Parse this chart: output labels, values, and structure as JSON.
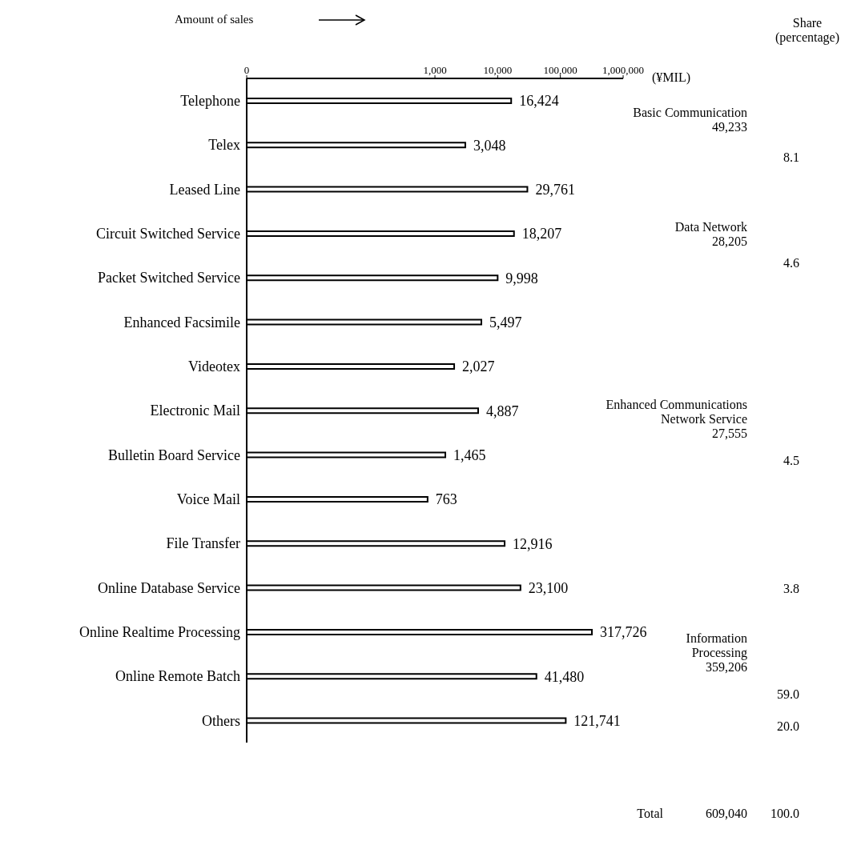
{
  "chart_data": {
    "type": "bar",
    "orientation": "horizontal",
    "log": "x",
    "xlabel": "Amount of sales",
    "categories": [
      "Telephone",
      "Telex",
      "Leased Line",
      "Circuit Switched Service",
      "Packet Switched Service",
      "Enhanced Facsimile",
      "Videotex",
      "Electronic Mail",
      "Bulletin Board Service",
      "Voice Mail",
      "File Transfer",
      "Online Database Service",
      "Online Realtime Processing",
      "Online Remote Batch",
      "Others"
    ],
    "values": [
      16424,
      3048,
      29761,
      18207,
      9998,
      5497,
      2027,
      4887,
      1465,
      763,
      12916,
      23100,
      317726,
      41480,
      121741
    ],
    "color": "#ffffff",
    "value_labels": [
      "16,424",
      "3,048",
      "29,761",
      "18,207",
      "9,998",
      "5,497",
      "2,027",
      "4,887",
      "1,465",
      "763",
      "12,916",
      "23,100",
      "317,726",
      "41,480",
      "121,741"
    ],
    "xlim": [
      0,
      1000000
    ],
    "xticks": [
      0,
      {
        "value": 1000,
        "label": "1,000"
      },
      {
        "value": 10000,
        "label": "10,000"
      },
      {
        "value": 100000,
        "label": "100,000"
      },
      {
        "value": 1000000,
        "label": "1,000,000"
      }
    ],
    "annotations": [
      "(¥MIL)",
      "Share\n(percentage)",
      "Basic Communication\n49,233",
      "8.1",
      "Data Network\n28,205",
      "4.6",
      "Enhanced Communications\nNetwork Service\n27,555",
      "4.5",
      "3.8",
      "Information\nProcessing\n359,206",
      "59.0",
      "20.0",
      "Total",
      "609,040",
      "100.0"
    ]
  }
}
